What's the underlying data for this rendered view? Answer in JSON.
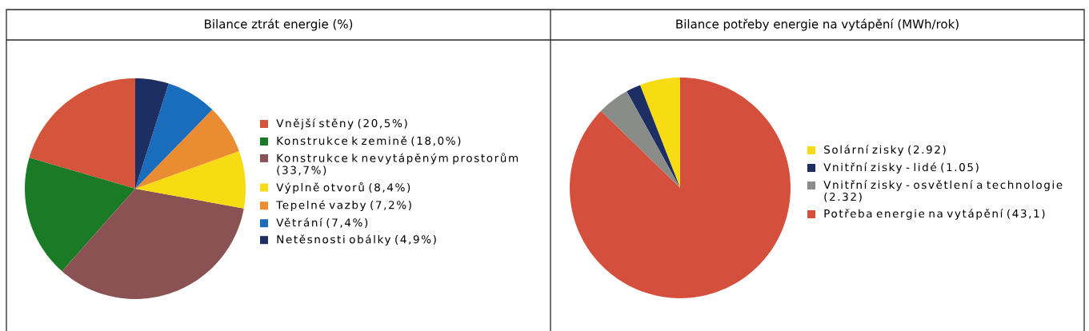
{
  "chart_data": [
    {
      "type": "pie",
      "title": "Bilance ztrát energie (%)",
      "legend": "right",
      "categories": [
        "Vnější stěny (20,5%)",
        "Konstrukce k zemině (18,0%)",
        "Konstrukce k nevytápěným prostorům (33,7%)",
        "Výplně otvorů (8,4%)",
        "Tepelné vazby (7,2%)",
        "Větrání (7,4%)",
        "Netěsnosti obálky (4,9%)"
      ],
      "values": [
        20.5,
        18.0,
        33.7,
        8.4,
        7.2,
        7.4,
        4.9
      ],
      "colors": [
        "#d4553c",
        "#1a7a26",
        "#8a5252",
        "#f7dc14",
        "#ea8c32",
        "#1a6cbc",
        "#1c2e62"
      ]
    },
    {
      "type": "pie",
      "title": "Bilance potřeby energie na vytápění (MWh/rok)",
      "legend": "right",
      "categories": [
        "Solární zisky (2.92)",
        "Vnitřní zisky - lidé (1.05)",
        "Vnitřní zisky - osvětlení a technologie (2.32)",
        "Potřeba energie na vytápění (43,1)"
      ],
      "values": [
        2.92,
        1.05,
        2.32,
        43.1
      ],
      "colors": [
        "#f7dc14",
        "#1c2e62",
        "#8a8c88",
        "#d4503c"
      ]
    }
  ]
}
